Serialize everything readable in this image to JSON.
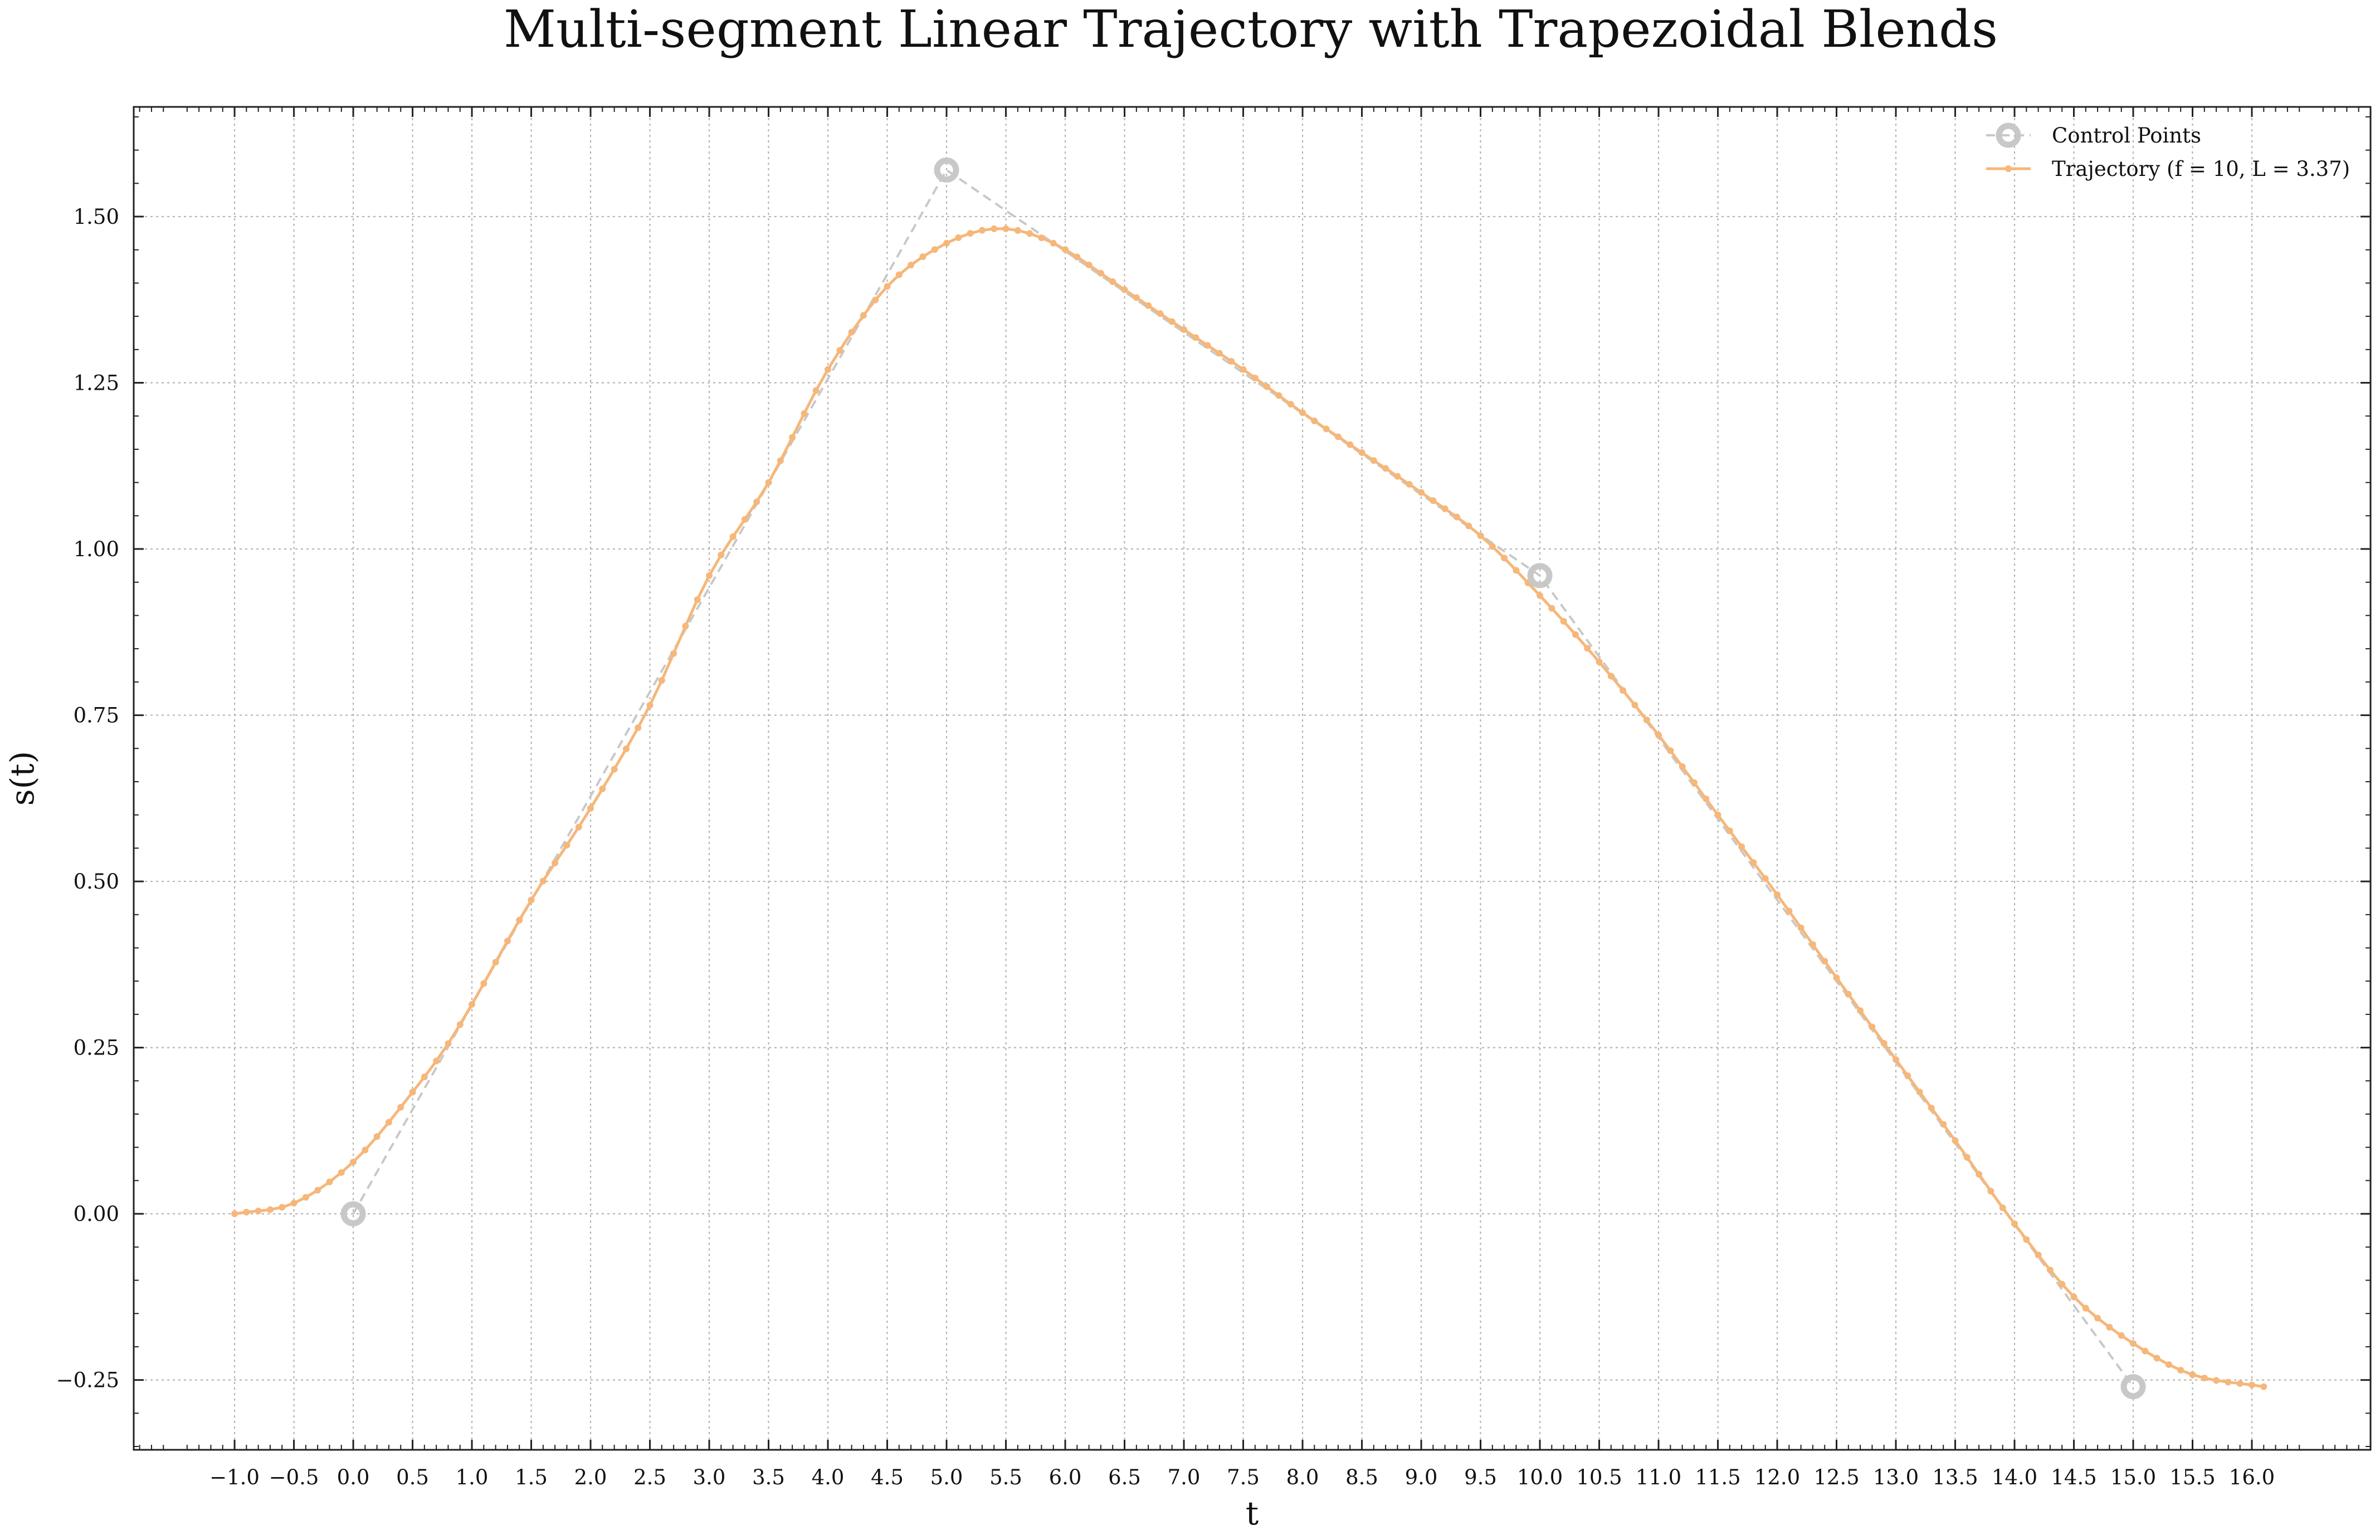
{
  "chart_data": {
    "type": "line",
    "title": "Multi-segment Linear Trajectory with Trapezoidal Blends",
    "xlabel": "t",
    "ylabel": "s(t)",
    "xlim": [
      -1.85,
      17.0
    ],
    "ylim": [
      -0.355,
      1.665
    ],
    "x_ticks": [
      -1.0,
      -0.5,
      0.0,
      0.5,
      1.0,
      1.5,
      2.0,
      2.5,
      3.0,
      3.5,
      4.0,
      4.5,
      5.0,
      5.5,
      6.0,
      6.5,
      7.0,
      7.5,
      8.0,
      8.5,
      9.0,
      9.5,
      10.0,
      10.5,
      11.0,
      11.5,
      12.0,
      12.5,
      13.0,
      13.5,
      14.0,
      14.5,
      15.0,
      15.5,
      16.0
    ],
    "x_tick_labels": [
      "−1.0",
      "−0.5",
      "0.0",
      "0.5",
      "1.0",
      "1.5",
      "2.0",
      "2.5",
      "3.0",
      "3.5",
      "4.0",
      "4.5",
      "5.0",
      "5.5",
      "6.0",
      "6.5",
      "7.0",
      "7.5",
      "8.0",
      "8.5",
      "9.0",
      "9.5",
      "10.0",
      "10.5",
      "11.0",
      "11.5",
      "12.0",
      "12.5",
      "13.0",
      "13.5",
      "14.0",
      "14.5",
      "15.0",
      "15.5",
      "16.0"
    ],
    "y_ticks": [
      -0.25,
      0.0,
      0.25,
      0.5,
      0.75,
      1.0,
      1.25,
      1.5
    ],
    "y_tick_labels": [
      "−0.25",
      "0.00",
      "0.25",
      "0.50",
      "0.75",
      "1.00",
      "1.25",
      "1.50"
    ],
    "grid": true,
    "legend_position": "top-right",
    "series": [
      {
        "name": "Control Points",
        "style": "dashed-with-markers",
        "color": "#c8c8c8",
        "x": [
          0.0,
          5.0,
          10.0,
          15.0
        ],
        "y": [
          0.0,
          1.57,
          0.96,
          -0.26
        ]
      },
      {
        "name": "Trajectory (f = 10, L = 3.37)",
        "style": "line-with-dots",
        "color": "#f5b77a",
        "x_start": -1.0,
        "x_end": 16.1,
        "x_step": 0.1,
        "knots": [
          [
            -1.0,
            0.0
          ],
          [
            -0.5,
            0.016
          ],
          [
            0.0,
            0.078
          ],
          [
            0.5,
            0.183
          ],
          [
            0.85,
            0.27
          ],
          [
            1.5,
            0.472
          ],
          [
            2.0,
            0.61
          ],
          [
            2.5,
            0.765
          ],
          [
            3.0,
            0.96
          ],
          [
            3.5,
            1.1
          ],
          [
            4.0,
            1.27
          ],
          [
            4.5,
            1.395
          ],
          [
            5.0,
            1.46
          ],
          [
            5.45,
            1.482
          ],
          [
            5.9,
            1.46
          ],
          [
            6.5,
            1.39
          ],
          [
            7.0,
            1.33
          ],
          [
            7.5,
            1.27
          ],
          [
            8.0,
            1.205
          ],
          [
            8.5,
            1.145
          ],
          [
            9.0,
            1.085
          ],
          [
            9.5,
            1.02
          ],
          [
            10.0,
            0.93
          ],
          [
            10.5,
            0.83
          ],
          [
            11.0,
            0.72
          ],
          [
            11.5,
            0.6
          ],
          [
            12.0,
            0.48
          ],
          [
            12.5,
            0.355
          ],
          [
            13.0,
            0.232
          ],
          [
            13.5,
            0.11
          ],
          [
            14.0,
            -0.015
          ],
          [
            14.5,
            -0.125
          ],
          [
            15.0,
            -0.195
          ],
          [
            15.5,
            -0.242
          ],
          [
            16.1,
            -0.26
          ]
        ]
      }
    ]
  }
}
